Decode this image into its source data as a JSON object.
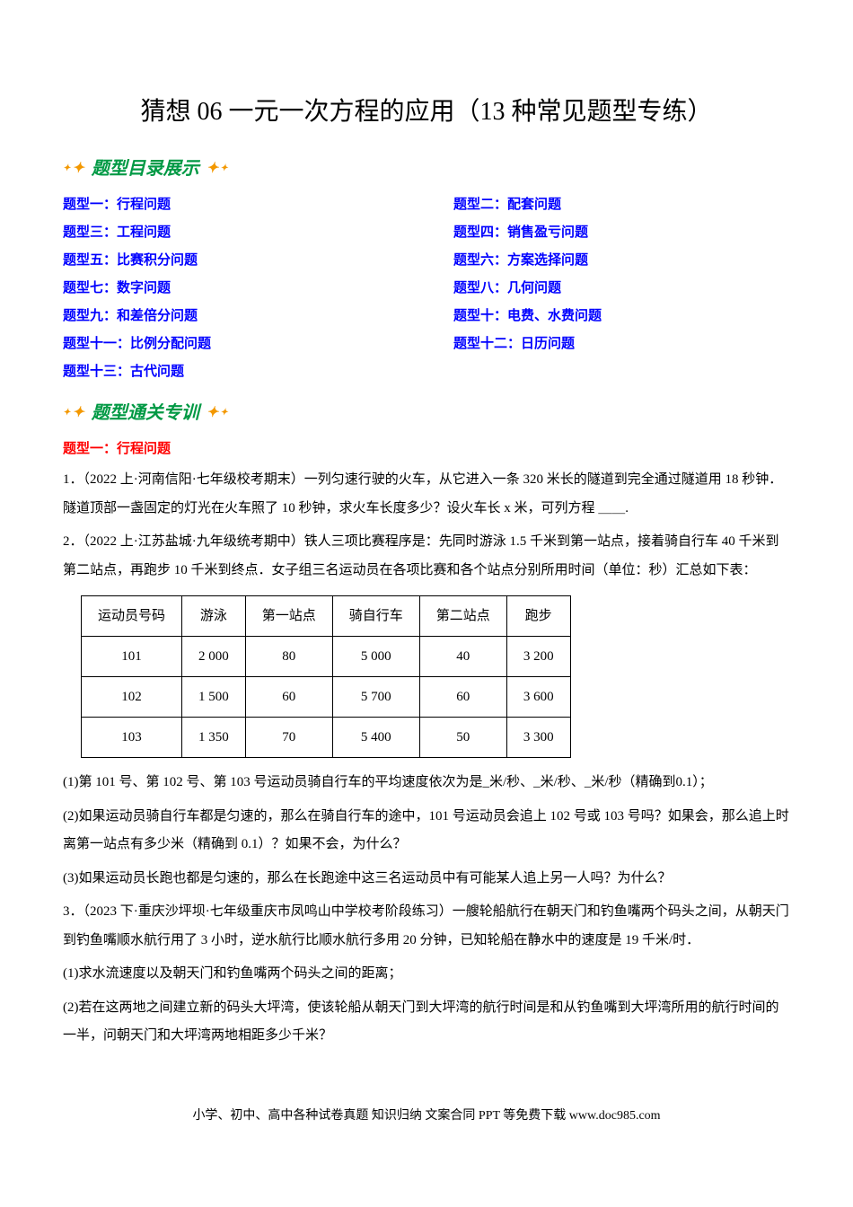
{
  "main_title": "猜想 06  一元一次方程的应用（13 种常见题型专练）",
  "banner1": "题型目录展示",
  "banner2": "题型通关专训",
  "toc": {
    "t1": "题型一：行程问题",
    "t2": "题型二：配套问题",
    "t3": "题型三：工程问题",
    "t4": "题型四：销售盈亏问题",
    "t5": "题型五：比赛积分问题",
    "t6": "题型六：方案选择问题",
    "t7": "题型七：数字问题",
    "t8": "题型八：几何问题",
    "t9": "题型九：和差倍分问题",
    "t10": "题型十：电费、水费问题",
    "t11": "题型十一：比例分配问题",
    "t12": "题型十二：日历问题",
    "t13": "题型十三：古代问题"
  },
  "sub1_header": "题型一：行程问题",
  "p1": "1．（2022 上·河南信阳·七年级校考期末）一列匀速行驶的火车，从它进入一条 320 米长的隧道到完全通过隧道用 18 秒钟．隧道顶部一盏固定的灯光在火车照了 10 秒钟，求火车长度多少？设火车长 x 米，可列方程 ＿＿.",
  "p2_intro": "2．（2022 上·江苏盐城·九年级统考期中）铁人三项比赛程序是：先同时游泳 1.5 千米到第一站点，接着骑自行车 40 千米到第二站点，再跑步 10 千米到终点．女子组三名运动员在各项比赛和各个站点分别所用时间（单位：秒）汇总如下表：",
  "table": {
    "headers": [
      "运动员号码",
      "游泳",
      "第一站点",
      "骑自行车",
      "第二站点",
      "跑步"
    ],
    "rows": [
      [
        "101",
        "2 000",
        "80",
        "5 000",
        "40",
        "3 200"
      ],
      [
        "102",
        "1 500",
        "60",
        "5 700",
        "60",
        "3 600"
      ],
      [
        "103",
        "1 350",
        "70",
        "5 400",
        "50",
        "3 300"
      ]
    ]
  },
  "p2_q1": "(1)第 101 号、第 102 号、第 103 号运动员骑自行车的平均速度依次为是_米/秒、_米/秒、_米/秒（精确到0.1）；",
  "p2_q2": "(2)如果运动员骑自行车都是匀速的，那么在骑自行车的途中，101 号运动员会追上 102 号或 103 号吗？如果会，那么追上时离第一站点有多少米（精确到 0.1）？如果不会，为什么？",
  "p2_q3": "(3)如果运动员长跑也都是匀速的，那么在长跑途中这三名运动员中有可能某人追上另一人吗？为什么？",
  "p3_intro": "3．（2023 下·重庆沙坪坝·七年级重庆市凤鸣山中学校考阶段练习）一艘轮船航行在朝天门和钓鱼嘴两个码头之间，从朝天门到钓鱼嘴顺水航行用了 3 小时，逆水航行比顺水航行多用 20 分钟，已知轮船在静水中的速度是 19 千米/时．",
  "p3_q1": "(1)求水流速度以及朝天门和钓鱼嘴两个码头之间的距离；",
  "p3_q2": "(2)若在这两地之间建立新的码头大坪湾，使该轮船从朝天门到大坪湾的航行时间是和从钓鱼嘴到大坪湾所用的航行时间的一半，问朝天门和大坪湾两地相距多少千米？",
  "footer": "小学、初中、高中各种试卷真题  知识归纳  文案合同  PPT 等免费下载   www.doc985.com"
}
